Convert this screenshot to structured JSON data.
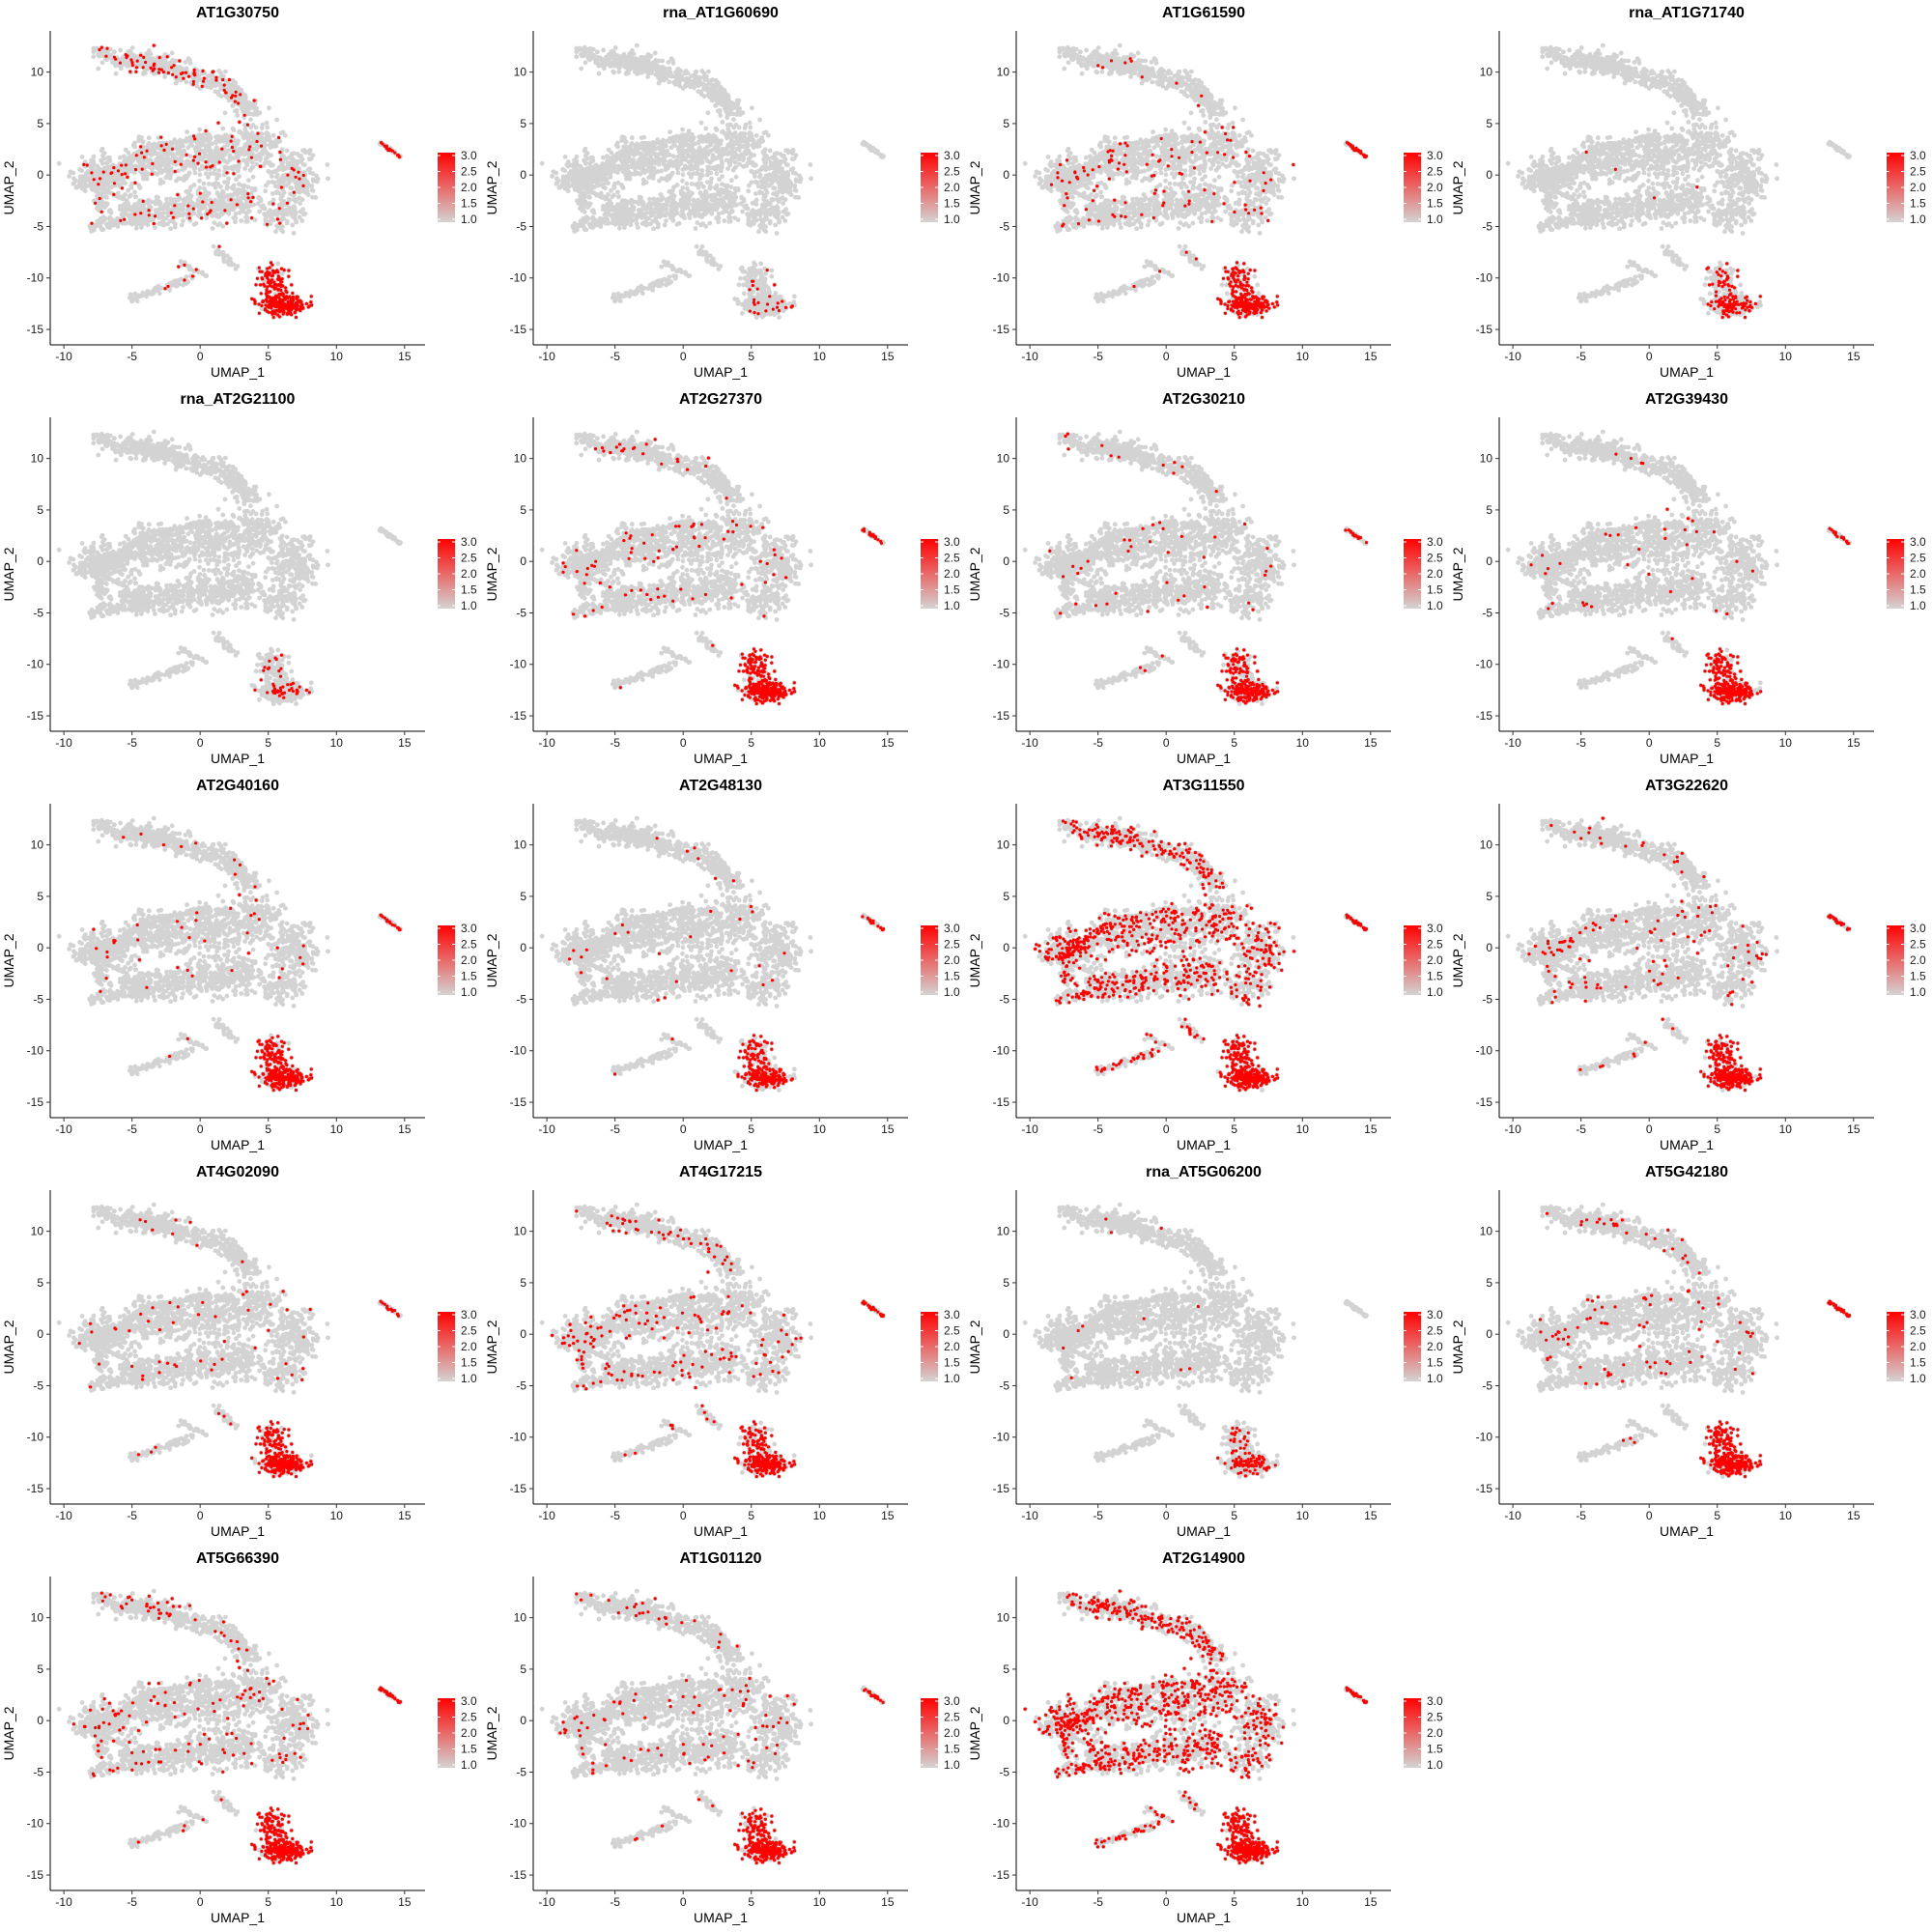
{
  "chart_data": [
    {
      "type": "scatter",
      "title": "AT1G30750",
      "xlabel": "UMAP_1",
      "ylabel": "UMAP_2",
      "xlim": [
        -11,
        16.5
      ],
      "ylim": [
        -16.5,
        14
      ],
      "xticks": [
        -10,
        -5,
        0,
        5,
        10,
        15
      ],
      "yticks": [
        -15,
        -10,
        -5,
        0,
        5,
        10
      ],
      "legend": {
        "placement": "right",
        "ticks": [
          "3.0",
          "2.5",
          "2.0",
          "1.5",
          "1.0"
        ],
        "low_color": "#d3d3d3",
        "high_color": "#ff0000"
      },
      "expression": {
        "bottom_cluster": 0.9,
        "scatter": 0.15,
        "right_streak": 0.5,
        "top_arm": 0.25,
        "global": 0.02
      }
    },
    {
      "type": "scatter",
      "title": "rna_AT1G60690",
      "xlabel": "UMAP_1",
      "ylabel": "UMAP_2",
      "xlim": [
        -11,
        16.5
      ],
      "ylim": [
        -16.5,
        14
      ],
      "xticks": [
        -10,
        -5,
        0,
        5,
        10,
        15
      ],
      "yticks": [
        -15,
        -10,
        -5,
        0,
        5,
        10
      ],
      "legend": {
        "placement": "right",
        "ticks": [
          "3.0",
          "2.5",
          "2.0",
          "1.5",
          "1.0"
        ],
        "low_color": "#d3d3d3",
        "high_color": "#ff0000"
      },
      "expression": {
        "bottom_cluster": 0.08,
        "scatter": 0.0,
        "right_streak": 0.0,
        "top_arm": 0.0,
        "global": 0.0
      }
    },
    {
      "type": "scatter",
      "title": "AT1G61590",
      "xlabel": "UMAP_1",
      "ylabel": "UMAP_2",
      "xlim": [
        -11,
        16.5
      ],
      "ylim": [
        -16.5,
        14
      ],
      "xticks": [
        -10,
        -5,
        0,
        5,
        10,
        15
      ],
      "yticks": [
        -15,
        -10,
        -5,
        0,
        5,
        10
      ],
      "legend": {
        "placement": "right",
        "ticks": [
          "3.0",
          "2.5",
          "2.0",
          "1.5",
          "1.0"
        ],
        "low_color": "#d3d3d3",
        "high_color": "#ff0000"
      },
      "expression": {
        "bottom_cluster": 0.7,
        "scatter": 0.15,
        "right_streak": 0.9,
        "top_arm": 0.05,
        "global": 0.02
      }
    },
    {
      "type": "scatter",
      "title": "rna_AT1G71740",
      "xlabel": "UMAP_1",
      "ylabel": "UMAP_2",
      "xlim": [
        -11,
        16.5
      ],
      "ylim": [
        -16.5,
        14
      ],
      "xticks": [
        -10,
        -5,
        0,
        5,
        10,
        15
      ],
      "yticks": [
        -15,
        -10,
        -5,
        0,
        5,
        10
      ],
      "legend": {
        "placement": "right",
        "ticks": [
          "3.0",
          "2.5",
          "2.0",
          "1.5",
          "1.0"
        ],
        "low_color": "#d3d3d3",
        "high_color": "#ff0000"
      },
      "expression": {
        "bottom_cluster": 0.3,
        "scatter": 0.0,
        "right_streak": 0.0,
        "top_arm": 0.0,
        "global": 0.003
      }
    },
    {
      "type": "scatter",
      "title": "rna_AT2G21100",
      "xlabel": "UMAP_1",
      "ylabel": "UMAP_2",
      "xlim": [
        -11,
        16.5
      ],
      "ylim": [
        -16.5,
        14
      ],
      "xticks": [
        -10,
        -5,
        0,
        5,
        10,
        15
      ],
      "yticks": [
        -15,
        -10,
        -5,
        0,
        5,
        10
      ],
      "legend": {
        "placement": "right",
        "ticks": [
          "3.0",
          "2.5",
          "2.0",
          "1.5",
          "1.0"
        ],
        "low_color": "#d3d3d3",
        "high_color": "#ff0000"
      },
      "expression": {
        "bottom_cluster": 0.15,
        "scatter": 0.0,
        "right_streak": 0.0,
        "top_arm": 0.0,
        "global": 0.0
      }
    },
    {
      "type": "scatter",
      "title": "AT2G27370",
      "xlabel": "UMAP_1",
      "ylabel": "UMAP_2",
      "xlim": [
        -11,
        16.5
      ],
      "ylim": [
        -16.5,
        14
      ],
      "xticks": [
        -10,
        -5,
        0,
        5,
        10,
        15
      ],
      "yticks": [
        -15,
        -10,
        -5,
        0,
        5,
        10
      ],
      "legend": {
        "placement": "right",
        "ticks": [
          "3.0",
          "2.5",
          "2.0",
          "1.5",
          "1.0"
        ],
        "low_color": "#d3d3d3",
        "high_color": "#ff0000"
      },
      "expression": {
        "bottom_cluster": 0.85,
        "scatter": 0.1,
        "right_streak": 0.5,
        "top_arm": 0.05,
        "global": 0.02
      }
    },
    {
      "type": "scatter",
      "title": "AT2G30210",
      "xlabel": "UMAP_1",
      "ylabel": "UMAP_2",
      "xlim": [
        -11,
        16.5
      ],
      "ylim": [
        -16.5,
        14
      ],
      "xticks": [
        -10,
        -5,
        0,
        5,
        10,
        15
      ],
      "yticks": [
        -15,
        -10,
        -5,
        0,
        5,
        10
      ],
      "legend": {
        "placement": "right",
        "ticks": [
          "3.0",
          "2.5",
          "2.0",
          "1.5",
          "1.0"
        ],
        "low_color": "#d3d3d3",
        "high_color": "#ff0000"
      },
      "expression": {
        "bottom_cluster": 0.75,
        "scatter": 0.05,
        "right_streak": 0.4,
        "top_arm": 0.05,
        "global": 0.01
      }
    },
    {
      "type": "scatter",
      "title": "AT2G39430",
      "xlabel": "UMAP_1",
      "ylabel": "UMAP_2",
      "xlim": [
        -11,
        16.5
      ],
      "ylim": [
        -16.5,
        14
      ],
      "xticks": [
        -10,
        -5,
        0,
        5,
        10,
        15
      ],
      "yticks": [
        -15,
        -10,
        -5,
        0,
        5,
        10
      ],
      "legend": {
        "placement": "right",
        "ticks": [
          "3.0",
          "2.5",
          "2.0",
          "1.5",
          "1.0"
        ],
        "low_color": "#d3d3d3",
        "high_color": "#ff0000"
      },
      "expression": {
        "bottom_cluster": 0.75,
        "scatter": 0.05,
        "right_streak": 0.4,
        "top_arm": 0.03,
        "global": 0.01
      }
    },
    {
      "type": "scatter",
      "title": "AT2G40160",
      "xlabel": "UMAP_1",
      "ylabel": "UMAP_2",
      "xlim": [
        -11,
        16.5
      ],
      "ylim": [
        -16.5,
        14
      ],
      "xticks": [
        -10,
        -5,
        0,
        5,
        10,
        15
      ],
      "yticks": [
        -15,
        -10,
        -5,
        0,
        5,
        10
      ],
      "legend": {
        "placement": "right",
        "ticks": [
          "3.0",
          "2.5",
          "2.0",
          "1.5",
          "1.0"
        ],
        "low_color": "#d3d3d3",
        "high_color": "#ff0000"
      },
      "expression": {
        "bottom_cluster": 0.85,
        "scatter": 0.05,
        "right_streak": 0.4,
        "top_arm": 0.03,
        "global": 0.01
      }
    },
    {
      "type": "scatter",
      "title": "AT2G48130",
      "xlabel": "UMAP_1",
      "ylabel": "UMAP_2",
      "xlim": [
        -11,
        16.5
      ],
      "ylim": [
        -16.5,
        14
      ],
      "xticks": [
        -10,
        -5,
        0,
        5,
        10,
        15
      ],
      "yticks": [
        -15,
        -10,
        -5,
        0,
        5,
        10
      ],
      "legend": {
        "placement": "right",
        "ticks": [
          "3.0",
          "2.5",
          "2.0",
          "1.5",
          "1.0"
        ],
        "low_color": "#d3d3d3",
        "high_color": "#ff0000"
      },
      "expression": {
        "bottom_cluster": 0.6,
        "scatter": 0.03,
        "right_streak": 0.4,
        "top_arm": 0.03,
        "global": 0.008
      }
    },
    {
      "type": "scatter",
      "title": "AT3G11550",
      "xlabel": "UMAP_1",
      "ylabel": "UMAP_2",
      "xlim": [
        -11,
        16.5
      ],
      "ylim": [
        -16.5,
        14
      ],
      "xticks": [
        -10,
        -5,
        0,
        5,
        10,
        15
      ],
      "yticks": [
        -15,
        -10,
        -5,
        0,
        5,
        10
      ],
      "legend": {
        "placement": "right",
        "ticks": [
          "3.0",
          "2.5",
          "2.0",
          "1.5",
          "1.0"
        ],
        "low_color": "#d3d3d3",
        "high_color": "#ff0000"
      },
      "expression": {
        "bottom_cluster": 0.9,
        "scatter": 0.55,
        "right_streak": 0.7,
        "top_arm": 0.6,
        "global": 0.3
      }
    },
    {
      "type": "scatter",
      "title": "AT3G22620",
      "xlabel": "UMAP_1",
      "ylabel": "UMAP_2",
      "xlim": [
        -11,
        16.5
      ],
      "ylim": [
        -16.5,
        14
      ],
      "xticks": [
        -10,
        -5,
        0,
        5,
        10,
        15
      ],
      "yticks": [
        -15,
        -10,
        -5,
        0,
        5,
        10
      ],
      "legend": {
        "placement": "right",
        "ticks": [
          "3.0",
          "2.5",
          "2.0",
          "1.5",
          "1.0"
        ],
        "low_color": "#d3d3d3",
        "high_color": "#ff0000"
      },
      "expression": {
        "bottom_cluster": 0.9,
        "scatter": 0.15,
        "right_streak": 0.8,
        "top_arm": 0.1,
        "global": 0.04
      }
    },
    {
      "type": "scatter",
      "title": "AT4G02090",
      "xlabel": "UMAP_1",
      "ylabel": "UMAP_2",
      "xlim": [
        -11,
        16.5
      ],
      "ylim": [
        -16.5,
        14
      ],
      "xticks": [
        -10,
        -5,
        0,
        5,
        10,
        15
      ],
      "yticks": [
        -15,
        -10,
        -5,
        0,
        5,
        10
      ],
      "legend": {
        "placement": "right",
        "ticks": [
          "3.0",
          "2.5",
          "2.0",
          "1.5",
          "1.0"
        ],
        "low_color": "#d3d3d3",
        "high_color": "#ff0000"
      },
      "expression": {
        "bottom_cluster": 0.8,
        "scatter": 0.05,
        "right_streak": 0.4,
        "top_arm": 0.03,
        "global": 0.01
      }
    },
    {
      "type": "scatter",
      "title": "AT4G17215",
      "xlabel": "UMAP_1",
      "ylabel": "UMAP_2",
      "xlim": [
        -11,
        16.5
      ],
      "ylim": [
        -16.5,
        14
      ],
      "xticks": [
        -10,
        -5,
        0,
        5,
        10,
        15
      ],
      "yticks": [
        -15,
        -10,
        -5,
        0,
        5,
        10
      ],
      "legend": {
        "placement": "right",
        "ticks": [
          "3.0",
          "2.5",
          "2.0",
          "1.5",
          "1.0"
        ],
        "low_color": "#d3d3d3",
        "high_color": "#ff0000"
      },
      "expression": {
        "bottom_cluster": 0.7,
        "scatter": 0.2,
        "right_streak": 0.5,
        "top_arm": 0.15,
        "global": 0.03
      }
    },
    {
      "type": "scatter",
      "title": "rna_AT5G06200",
      "xlabel": "UMAP_1",
      "ylabel": "UMAP_2",
      "xlim": [
        -11,
        16.5
      ],
      "ylim": [
        -16.5,
        14
      ],
      "xticks": [
        -10,
        -5,
        0,
        5,
        10,
        15
      ],
      "yticks": [
        -15,
        -10,
        -5,
        0,
        5,
        10
      ],
      "legend": {
        "placement": "right",
        "ticks": [
          "3.0",
          "2.5",
          "2.0",
          "1.5",
          "1.0"
        ],
        "low_color": "#d3d3d3",
        "high_color": "#ff0000"
      },
      "expression": {
        "bottom_cluster": 0.25,
        "scatter": 0.0,
        "right_streak": 0.0,
        "top_arm": 0.0,
        "global": 0.002
      }
    },
    {
      "type": "scatter",
      "title": "AT5G42180",
      "xlabel": "UMAP_1",
      "ylabel": "UMAP_2",
      "xlim": [
        -11,
        16.5
      ],
      "ylim": [
        -16.5,
        14
      ],
      "xticks": [
        -10,
        -5,
        0,
        5,
        10,
        15
      ],
      "yticks": [
        -15,
        -10,
        -5,
        0,
        5,
        10
      ],
      "legend": {
        "placement": "right",
        "ticks": [
          "3.0",
          "2.5",
          "2.0",
          "1.5",
          "1.0"
        ],
        "low_color": "#d3d3d3",
        "high_color": "#ff0000"
      },
      "expression": {
        "bottom_cluster": 0.9,
        "scatter": 0.1,
        "right_streak": 0.8,
        "top_arm": 0.08,
        "global": 0.03
      }
    },
    {
      "type": "scatter",
      "title": "AT5G66390",
      "xlabel": "UMAP_1",
      "ylabel": "UMAP_2",
      "xlim": [
        -11,
        16.5
      ],
      "ylim": [
        -16.5,
        14
      ],
      "xticks": [
        -10,
        -5,
        0,
        5,
        10,
        15
      ],
      "yticks": [
        -15,
        -10,
        -5,
        0,
        5,
        10
      ],
      "legend": {
        "placement": "right",
        "ticks": [
          "3.0",
          "2.5",
          "2.0",
          "1.5",
          "1.0"
        ],
        "low_color": "#d3d3d3",
        "high_color": "#ff0000"
      },
      "expression": {
        "bottom_cluster": 0.9,
        "scatter": 0.15,
        "right_streak": 0.6,
        "top_arm": 0.2,
        "global": 0.04
      }
    },
    {
      "type": "scatter",
      "title": "AT1G01120",
      "xlabel": "UMAP_1",
      "ylabel": "UMAP_2",
      "xlim": [
        -11,
        16.5
      ],
      "ylim": [
        -16.5,
        14
      ],
      "xticks": [
        -10,
        -5,
        0,
        5,
        10,
        15
      ],
      "yticks": [
        -15,
        -10,
        -5,
        0,
        5,
        10
      ],
      "legend": {
        "placement": "right",
        "ticks": [
          "3.0",
          "2.5",
          "2.0",
          "1.5",
          "1.0"
        ],
        "low_color": "#d3d3d3",
        "high_color": "#ff0000"
      },
      "expression": {
        "bottom_cluster": 0.8,
        "scatter": 0.1,
        "right_streak": 0.5,
        "top_arm": 0.08,
        "global": 0.02
      }
    },
    {
      "type": "scatter",
      "title": "AT2G14900",
      "xlabel": "UMAP_1",
      "ylabel": "UMAP_2",
      "xlim": [
        -11,
        16.5
      ],
      "ylim": [
        -16.5,
        14
      ],
      "xticks": [
        -10,
        -5,
        0,
        5,
        10,
        15
      ],
      "yticks": [
        -15,
        -10,
        -5,
        0,
        5,
        10
      ],
      "legend": {
        "placement": "right",
        "ticks": [
          "3.0",
          "2.5",
          "2.0",
          "1.5",
          "1.0"
        ],
        "low_color": "#d3d3d3",
        "high_color": "#ff0000"
      },
      "expression": {
        "bottom_cluster": 0.95,
        "scatter": 0.65,
        "right_streak": 0.7,
        "top_arm": 0.3,
        "global": 0.35
      }
    }
  ]
}
